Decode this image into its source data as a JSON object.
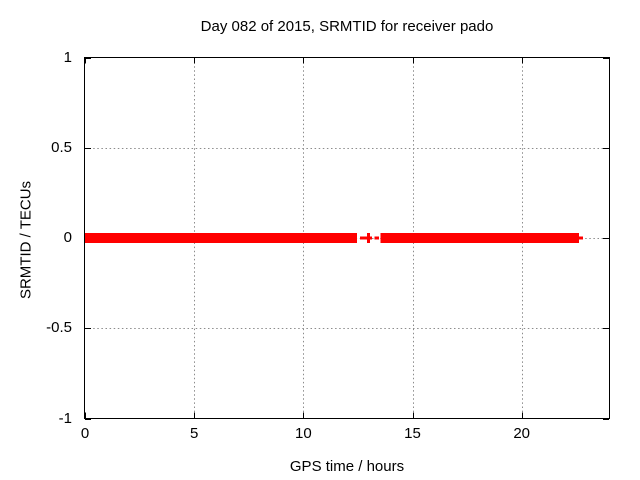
{
  "chart_data": {
    "type": "scatter",
    "title": "Day 082 of 2015, SRMTID for receiver pado",
    "xlabel": "GPS time / hours",
    "ylabel": "SRMTID / TECUs",
    "xlim": [
      0,
      24
    ],
    "ylim": [
      -1,
      1
    ],
    "xticks": [
      0,
      5,
      10,
      15,
      20
    ],
    "xtick_labels": [
      "0",
      "5",
      "10",
      "15",
      "20"
    ],
    "yticks": [
      1,
      0.5,
      0,
      -0.5,
      -1
    ],
    "ytick_labels": [
      "1",
      "0.5",
      "0",
      "-0.5",
      "-1"
    ],
    "grid": "dotted",
    "grid_color": "#8c8c8c",
    "axis_color": "#000000",
    "background_color": "#ffffff",
    "legend": "none",
    "series": [
      {
        "name": "SRMTID",
        "color": "#ff0000",
        "marker": "plus",
        "y_value": 0,
        "dense_segments_hours": [
          [
            0.0,
            12.46
          ],
          [
            13.53,
            22.63
          ]
        ],
        "sparse_points_hours": [
          {
            "x": 12.69,
            "y": 0,
            "style": "dash"
          },
          {
            "x": 12.98,
            "y": 0,
            "style": "plus"
          },
          {
            "x": 13.37,
            "y": 0,
            "style": "dash"
          },
          {
            "x": 22.71,
            "y": 0,
            "style": "dash"
          }
        ]
      }
    ]
  }
}
